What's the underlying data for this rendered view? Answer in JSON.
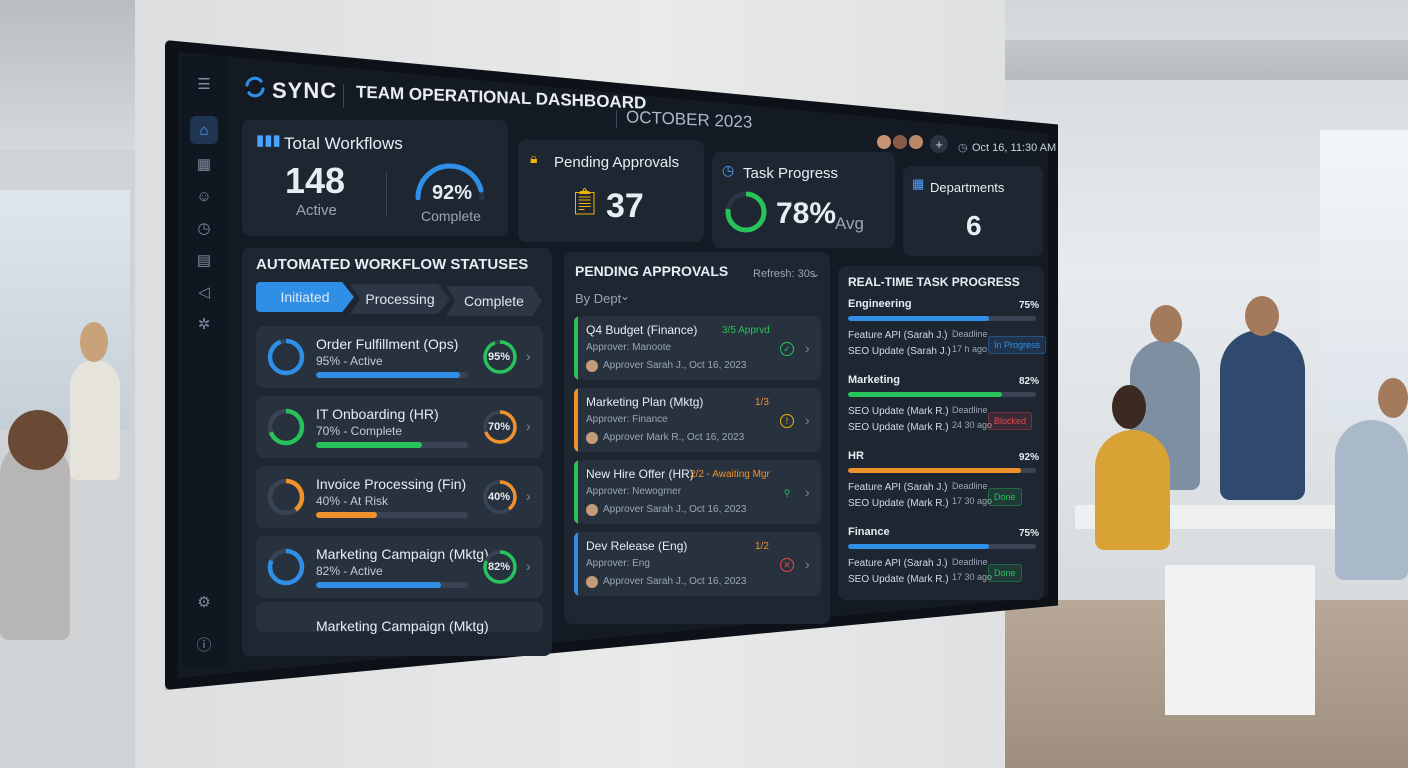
{
  "header": {
    "brand": "SYNC",
    "title": "TEAM OPERATIONAL DASHBOARD",
    "month": "OCTOBER 2023",
    "datetime": "Oct 16, 11:30 AM",
    "add_label": "+"
  },
  "stats": {
    "total_workflows": {
      "label": "Total Workflows",
      "value": "148",
      "sub": "Active",
      "pct": "92%",
      "pct_sub": "Complete",
      "pct_value": 92
    },
    "pending_approvals": {
      "label": "Pending Approvals",
      "value": "37"
    },
    "task_progress": {
      "label": "Task Progress",
      "value": "78%",
      "sub": "Avg",
      "pct_value": 78
    },
    "departments": {
      "label": "Departments",
      "value": "6"
    }
  },
  "workflow_panel": {
    "title": "AUTOMATED WORKFLOW STATUSES",
    "tabs": [
      "Initiated",
      "Processing",
      "Complete"
    ],
    "items": [
      {
        "name": "Order Fulfillment (Ops)",
        "status": "95% - Active",
        "pct": "95%",
        "value": 95,
        "color": "#2f8fe6",
        "ring_color": "#27c25a"
      },
      {
        "name": "IT Onboarding (HR)",
        "status": "70% - Complete",
        "pct": "70%",
        "value": 70,
        "color": "#27c25a",
        "ring_color": "#f0922b"
      },
      {
        "name": "Invoice Processing (Fin)",
        "status": "40% - At Risk",
        "pct": "40%",
        "value": 40,
        "color": "#f0922b",
        "ring_color": "#f0922b"
      },
      {
        "name": "Marketing Campaign (Mktg)",
        "status": "82% - Active",
        "pct": "82%",
        "value": 82,
        "color": "#2f8fe6",
        "ring_color": "#27c25a"
      },
      {
        "name": "Marketing Campaign (Mktg)"
      }
    ]
  },
  "approvals_panel": {
    "title": "PENDING APPROVALS",
    "refresh": "Refresh: 30s",
    "filter": "By Dept",
    "items": [
      {
        "name": "Q4 Budget (Finance)",
        "count": "3/5 Apprvd",
        "approver": "Approver: Manoote",
        "meta": "Approver Sarah J., Oct 16, 2023",
        "color": "#27c25a",
        "count_color": "#27c25a",
        "icon": "check"
      },
      {
        "name": "Marketing Plan (Mktg)",
        "count": "1/3",
        "approver": "Approver: Finance",
        "meta": "Approver Mark R., Oct 16, 2023",
        "color": "#f0922b",
        "count_color": "#f0922b",
        "icon": "alert"
      },
      {
        "name": "New Hire Offer (HR)",
        "count": "2/2 - Awaiting Mgr",
        "approver": "Approver: Newogrner",
        "meta": "Approver Sarah J., Oct 16, 2023",
        "color": "#27c25a",
        "count_color": "#f0922b",
        "icon": "user"
      },
      {
        "name": "Dev Release (Eng)",
        "count": "1/2",
        "approver": "Approver: Eng",
        "meta": "Approver Sarah J., Oct 16, 2023",
        "color": "#2f8fe6",
        "count_color": "#f0922b",
        "icon": "x"
      }
    ]
  },
  "tasks_panel": {
    "title": "REAL-TIME TASK PROGRESS",
    "deadline_label": "Deadline",
    "depts": [
      {
        "name": "Engineering",
        "pct": "75%",
        "value": 75,
        "color": "#2f8fe6",
        "task1": "Feature API (Sarah J.)",
        "task2": "SEO Update (Sarah J.)",
        "due": "17 h ago",
        "badge": "In Progress",
        "badge_color": "#2f8fe6"
      },
      {
        "name": "Marketing",
        "pct": "82%",
        "value": 82,
        "color": "#27c25a",
        "task1": "SEO Update (Mark R.)",
        "task2": "SEO Update (Mark R.)",
        "due": "24 30 ago",
        "badge": "Blocked",
        "badge_color": "#e5484d"
      },
      {
        "name": "HR",
        "pct": "92%",
        "value": 92,
        "color": "#f0922b",
        "task1": "Feature API (Sarah J.)",
        "task2": "SEO Update (Mark R.)",
        "due": "17 30 ago",
        "badge": "Done",
        "badge_color": "#27c25a"
      },
      {
        "name": "Finance",
        "pct": "75%",
        "value": 75,
        "color": "#2f8fe6",
        "task1": "Feature API (Sarah J.)",
        "task2": "SEO Update (Mark R.)",
        "due": "17 30 ago",
        "badge": "Done",
        "badge_color": "#27c25a"
      }
    ]
  },
  "sidebar": {
    "icons": [
      "menu-icon",
      "home-icon",
      "grid-icon",
      "user-icon",
      "clock-icon",
      "chart-icon",
      "megaphone-icon",
      "settings-icon",
      "gear-icon",
      "info-icon"
    ]
  },
  "colors": {
    "accent": "#2f8fe6",
    "green": "#27c25a",
    "orange": "#f0922b",
    "red": "#e5484d",
    "panel": "#1e2632"
  }
}
